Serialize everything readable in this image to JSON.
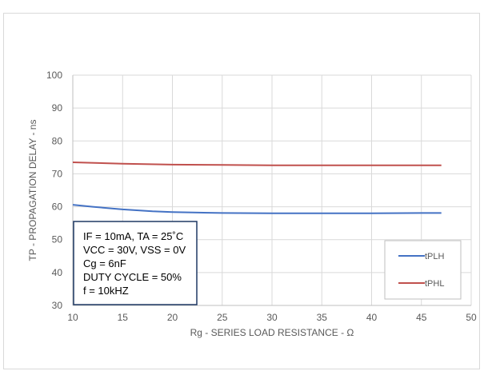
{
  "chart_data": {
    "type": "line",
    "xlabel": "Rg - SERIES LOAD RESISTANCE - Ω",
    "ylabel": "TP - PROPAGATION DELAY - ns",
    "xlim": [
      10,
      50
    ],
    "ylim": [
      30,
      100
    ],
    "x_ticks": [
      "10",
      "15",
      "20",
      "25",
      "30",
      "35",
      "40",
      "45",
      "50"
    ],
    "y_ticks": [
      "30",
      "40",
      "50",
      "60",
      "70",
      "80",
      "90",
      "100"
    ],
    "grid": true,
    "legend_position": "bottom-right",
    "series": [
      {
        "name": "tPLH",
        "color": "#4472c4",
        "x": [
          10,
          12,
          15,
          18,
          20,
          25,
          30,
          35,
          40,
          45,
          47
        ],
        "y": [
          60.6,
          60.0,
          59.2,
          58.6,
          58.4,
          58.1,
          58.0,
          58.0,
          58.0,
          58.1,
          58.1
        ]
      },
      {
        "name": "tPHL",
        "color": "#c0504d",
        "x": [
          10,
          15,
          20,
          25,
          30,
          35,
          40,
          45,
          47
        ],
        "y": [
          73.5,
          73.1,
          72.8,
          72.7,
          72.6,
          72.6,
          72.6,
          72.6,
          72.6
        ]
      }
    ],
    "annotation": {
      "lines": [
        "IF = 10mA, TA = 25˚C",
        "VCC = 30V, VSS = 0V",
        "Cg = 6nF",
        "DUTY CYCLE = 50%",
        "f = 10kHZ"
      ]
    }
  }
}
